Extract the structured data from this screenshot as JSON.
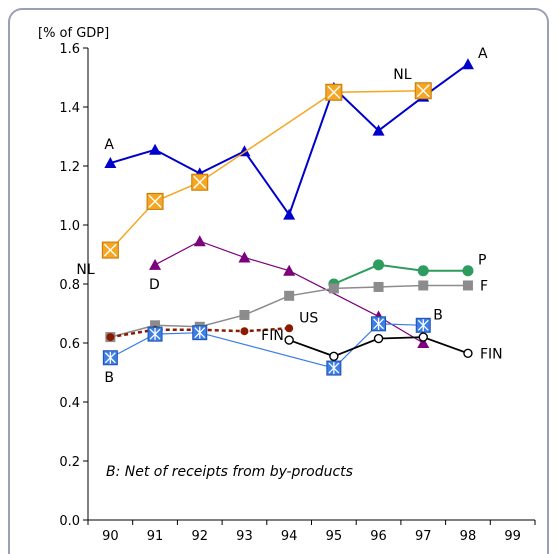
{
  "chart_data": {
    "type": "line",
    "ylabel": "[% of GDP]",
    "annotation": "B: Net of receipts from by-products",
    "x": [
      "90",
      "91",
      "92",
      "93",
      "94",
      "95",
      "96",
      "97",
      "98",
      "99"
    ],
    "ylim": [
      0.0,
      1.6
    ],
    "yticks": [
      "0.0",
      "0.2",
      "0.4",
      "0.6",
      "0.8",
      "1.0",
      "1.2",
      "1.4",
      "1.6"
    ],
    "grid": false,
    "series": [
      {
        "name": "A",
        "color": "#0000cc",
        "marker": "triangle",
        "values": [
          1.21,
          1.255,
          1.175,
          1.25,
          1.035,
          1.465,
          1.32,
          1.435,
          1.545,
          null
        ]
      },
      {
        "name": "NL",
        "color": "#f5a623",
        "marker": "boxx",
        "values": [
          0.915,
          1.08,
          1.145,
          null,
          null,
          1.45,
          null,
          1.455,
          null,
          null
        ]
      },
      {
        "name": "D",
        "color": "#7d007d",
        "marker": "triangle",
        "values": [
          null,
          0.865,
          0.945,
          0.89,
          0.845,
          null,
          0.69,
          0.6,
          null,
          null
        ]
      },
      {
        "name": "P",
        "color": "#2e9b5f",
        "marker": "circle",
        "values": [
          null,
          null,
          null,
          null,
          null,
          0.8,
          0.865,
          0.845,
          0.845,
          null
        ]
      },
      {
        "name": "F",
        "color": "#8c8c8c",
        "marker": "square",
        "values": [
          0.62,
          0.66,
          0.655,
          0.695,
          0.76,
          0.785,
          0.79,
          0.795,
          0.795,
          null
        ]
      },
      {
        "name": "US",
        "color": "#8b1a00",
        "marker": "dot",
        "values": [
          0.62,
          0.645,
          0.645,
          0.64,
          0.65,
          null,
          null,
          null,
          null,
          null
        ]
      },
      {
        "name": "B",
        "color": "#3a7ee6",
        "marker": "boxstar",
        "values": [
          0.55,
          0.63,
          0.635,
          null,
          null,
          0.515,
          0.665,
          0.66,
          null,
          null
        ]
      },
      {
        "name": "FIN",
        "color": "#000000",
        "marker": "opencircle",
        "values": [
          null,
          null,
          null,
          null,
          0.61,
          0.555,
          0.615,
          0.62,
          0.565,
          null
        ]
      }
    ],
    "labels": [
      {
        "series": "A",
        "text": "A",
        "at": "90",
        "pos": "above"
      },
      {
        "series": "A",
        "text": "A",
        "at": "98",
        "pos": "right-above"
      },
      {
        "series": "NL",
        "text": "NL",
        "at": "90",
        "pos": "below-left"
      },
      {
        "series": "NL",
        "text": "NL",
        "at": "97",
        "pos": "above-left"
      },
      {
        "series": "D",
        "text": "D",
        "at": "91",
        "pos": "below"
      },
      {
        "series": "P",
        "text": "P",
        "at": "98",
        "pos": "right-above"
      },
      {
        "series": "F",
        "text": "F",
        "at": "98",
        "pos": "right"
      },
      {
        "series": "US",
        "text": "US",
        "at": "94",
        "pos": "right-above"
      },
      {
        "series": "B",
        "text": "B",
        "at": "90",
        "pos": "below"
      },
      {
        "series": "B",
        "text": "B",
        "at": "97",
        "pos": "right-above"
      },
      {
        "series": "FIN",
        "text": "FIN",
        "at": "94",
        "pos": "left"
      },
      {
        "series": "FIN",
        "text": "FIN",
        "at": "98",
        "pos": "right"
      }
    ]
  }
}
